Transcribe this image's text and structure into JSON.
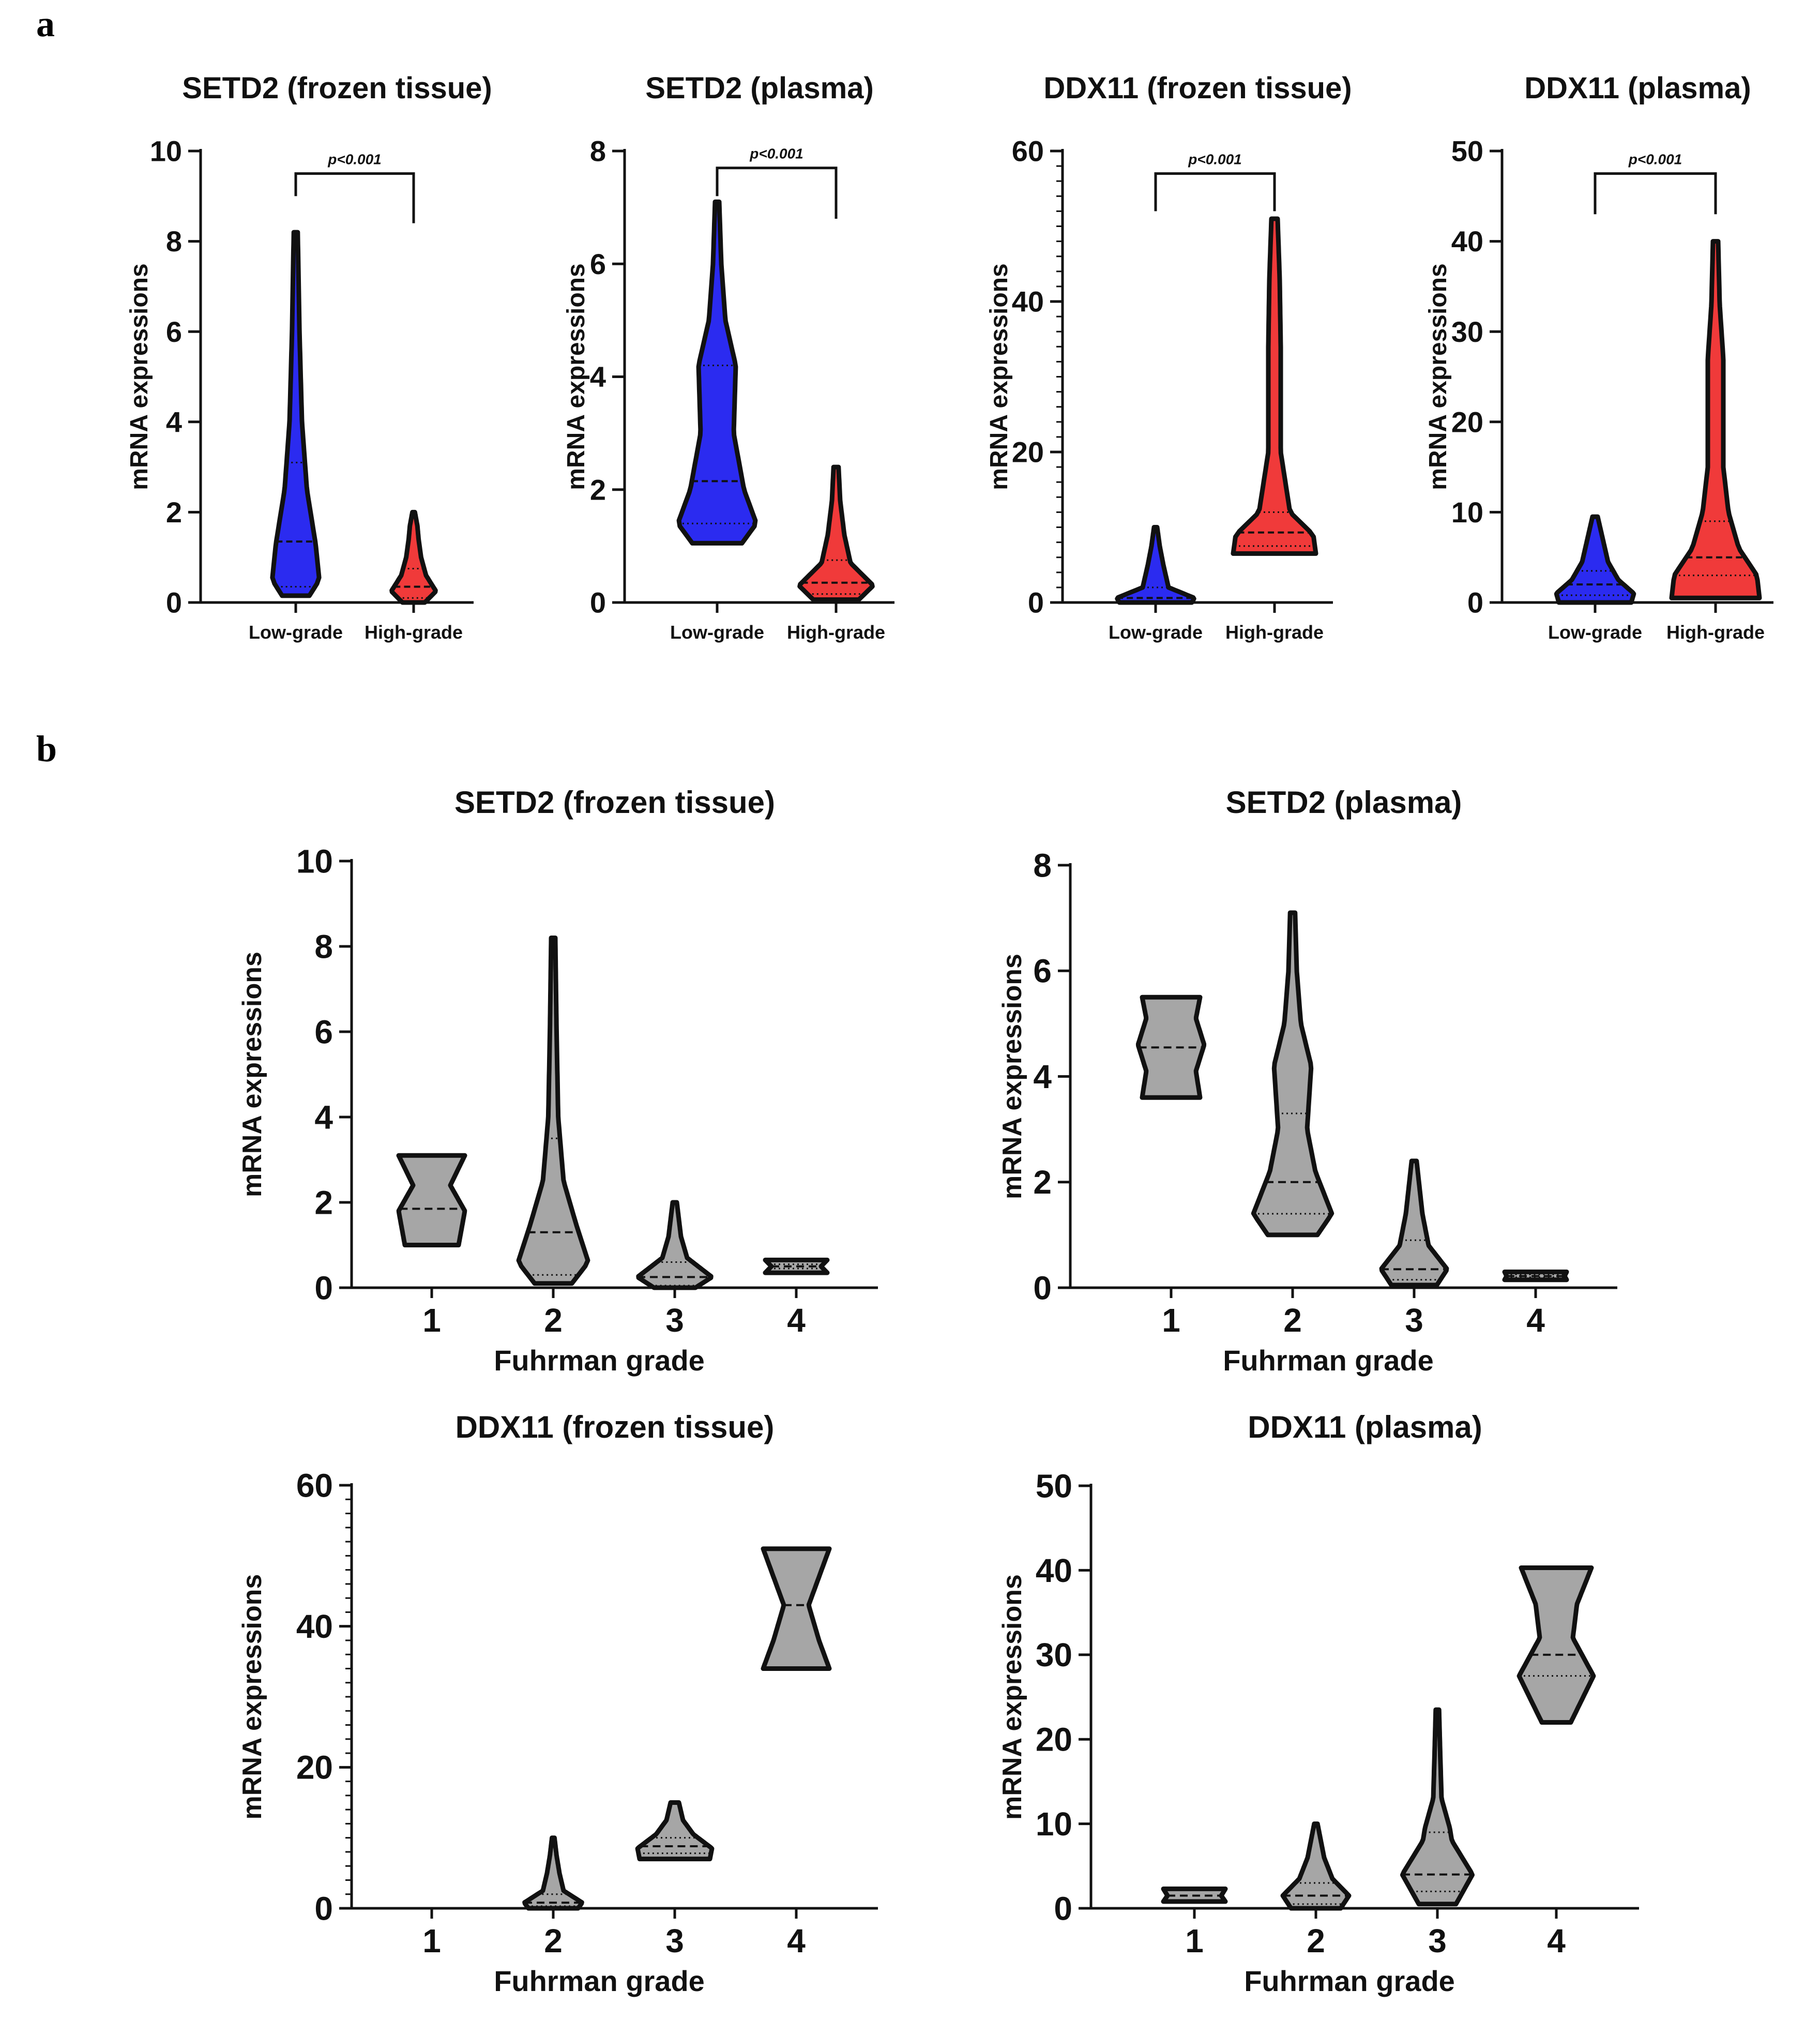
{
  "figure": {
    "panel_labels": [
      "a",
      "b"
    ],
    "colors": {
      "low_grade": "#2b2bf0",
      "high_grade": "#f03a3a",
      "grade": "#a6a6a6",
      "axis": "#111111"
    }
  },
  "chart_data": [
    {
      "id": "a1",
      "type": "violin",
      "title": "SETD2 (frozen tissue)",
      "xlabel": "",
      "ylabel": "mRNA expressions",
      "ylim": [
        0,
        10
      ],
      "yticks": [
        0,
        2,
        4,
        6,
        8,
        10
      ],
      "minor_ticks": false,
      "categories": [
        "Low-grade",
        "High-grade"
      ],
      "annotation": {
        "text": "p<0.001",
        "from": 0,
        "to": 1,
        "y": 9.5,
        "drop_left": 9.0,
        "drop_right": 8.4
      },
      "violins": [
        {
          "category": "Low-grade",
          "color": "#2b2bf0",
          "min": 0.15,
          "max": 8.2,
          "median": 1.35,
          "q1": 0.35,
          "q3": 3.1,
          "profile": [
            [
              0.15,
              0.55
            ],
            [
              0.5,
              0.95
            ],
            [
              1.3,
              0.8
            ],
            [
              2.5,
              0.45
            ],
            [
              4.0,
              0.25
            ],
            [
              6.0,
              0.15
            ],
            [
              8.2,
              0.08
            ]
          ]
        },
        {
          "category": "High-grade",
          "color": "#f03a3a",
          "min": 0.0,
          "max": 2.0,
          "median": 0.35,
          "q1": 0.1,
          "q3": 0.75,
          "profile": [
            [
              0.0,
              0.45
            ],
            [
              0.25,
              0.9
            ],
            [
              0.6,
              0.5
            ],
            [
              1.0,
              0.3
            ],
            [
              1.4,
              0.2
            ],
            [
              1.7,
              0.15
            ],
            [
              2.0,
              0.05
            ]
          ]
        }
      ]
    },
    {
      "id": "a2",
      "type": "violin",
      "title": "SETD2 (plasma)",
      "xlabel": "",
      "ylabel": "mRNA expressions",
      "ylim": [
        0,
        8
      ],
      "yticks": [
        0,
        2,
        4,
        6,
        8
      ],
      "minor_ticks": false,
      "categories": [
        "Low-grade",
        "High-grade"
      ],
      "annotation": {
        "text": "p<0.001",
        "from": 0,
        "to": 1,
        "y": 7.7,
        "drop_left": 7.2,
        "drop_right": 6.8
      },
      "violins": [
        {
          "category": "Low-grade",
          "color": "#2b2bf0",
          "min": 1.05,
          "max": 7.1,
          "median": 2.15,
          "q1": 1.4,
          "q3": 4.2,
          "profile": [
            [
              1.05,
              0.6
            ],
            [
              1.4,
              0.95
            ],
            [
              2.0,
              0.65
            ],
            [
              3.0,
              0.4
            ],
            [
              4.2,
              0.45
            ],
            [
              5.0,
              0.2
            ],
            [
              6.0,
              0.1
            ],
            [
              7.1,
              0.05
            ]
          ]
        },
        {
          "category": "High-grade",
          "color": "#f03a3a",
          "min": 0.05,
          "max": 2.4,
          "median": 0.35,
          "q1": 0.15,
          "q3": 0.75,
          "profile": [
            [
              0.05,
              0.55
            ],
            [
              0.3,
              0.9
            ],
            [
              0.7,
              0.35
            ],
            [
              1.2,
              0.2
            ],
            [
              1.8,
              0.1
            ],
            [
              2.4,
              0.06
            ]
          ]
        }
      ]
    },
    {
      "id": "a3",
      "type": "violin",
      "title": "DDX11 (frozen tissue)",
      "xlabel": "",
      "ylabel": "mRNA expressions",
      "ylim": [
        0,
        60
      ],
      "yticks": [
        0,
        20,
        40,
        60
      ],
      "minor_ticks": true,
      "categories": [
        "Low-grade",
        "High-grade"
      ],
      "annotation": {
        "text": "p<0.001",
        "from": 0,
        "to": 1,
        "y": 57,
        "drop_left": 52,
        "drop_right": 52
      },
      "violins": [
        {
          "category": "Low-grade",
          "color": "#2b2bf0",
          "min": 0.0,
          "max": 10.0,
          "median": 0.6,
          "q1": 0.2,
          "q3": 2.0,
          "profile": [
            [
              0.0,
              0.7
            ],
            [
              0.6,
              0.75
            ],
            [
              2.0,
              0.25
            ],
            [
              5.0,
              0.15
            ],
            [
              7.5,
              0.08
            ],
            [
              10.0,
              0.03
            ]
          ]
        },
        {
          "category": "High-grade",
          "color": "#f03a3a",
          "min": 6.5,
          "max": 51.0,
          "median": 9.3,
          "q1": 7.5,
          "q3": 12.0,
          "profile": [
            [
              6.5,
              0.8
            ],
            [
              9.0,
              0.75
            ],
            [
              12.0,
              0.3
            ],
            [
              20.0,
              0.12
            ],
            [
              34.0,
              0.12
            ],
            [
              43.0,
              0.1
            ],
            [
              51.0,
              0.06
            ]
          ]
        }
      ]
    },
    {
      "id": "a4",
      "type": "violin",
      "title": "DDX11 (plasma)",
      "xlabel": "",
      "ylabel": "mRNA expressions",
      "ylim": [
        0,
        50
      ],
      "yticks": [
        0,
        10,
        20,
        30,
        40,
        50
      ],
      "minor_ticks": false,
      "categories": [
        "Low-grade",
        "High-grade"
      ],
      "annotation": {
        "text": "p<0.001",
        "from": 0,
        "to": 1,
        "y": 47.5,
        "drop_left": 43.0,
        "drop_right": 43.0
      },
      "violins": [
        {
          "category": "Low-grade",
          "color": "#2b2bf0",
          "min": 0.0,
          "max": 9.5,
          "median": 2.0,
          "q1": 0.8,
          "q3": 3.5,
          "profile": [
            [
              0.0,
              0.7
            ],
            [
              1.0,
              0.75
            ],
            [
              2.5,
              0.45
            ],
            [
              4.5,
              0.25
            ],
            [
              7.0,
              0.15
            ],
            [
              9.5,
              0.05
            ]
          ]
        },
        {
          "category": "High-grade",
          "color": "#f03a3a",
          "min": 0.5,
          "max": 40.0,
          "median": 5.0,
          "q1": 3.0,
          "q3": 9.0,
          "profile": [
            [
              0.5,
              0.85
            ],
            [
              3.0,
              0.8
            ],
            [
              6.0,
              0.45
            ],
            [
              10.0,
              0.25
            ],
            [
              15.0,
              0.15
            ],
            [
              27.0,
              0.15
            ],
            [
              33.0,
              0.08
            ],
            [
              40.0,
              0.05
            ]
          ]
        }
      ]
    },
    {
      "id": "b1",
      "type": "violin",
      "title": "SETD2 (frozen tissue)",
      "xlabel": "Fuhrman grade",
      "ylabel": "mRNA expressions",
      "ylim": [
        0,
        10
      ],
      "yticks": [
        0,
        2,
        4,
        6,
        8,
        10
      ],
      "minor_ticks": false,
      "categories": [
        "1",
        "2",
        "3",
        "4"
      ],
      "violins": [
        {
          "category": "1",
          "color": "#a6a6a6",
          "min": 1.0,
          "max": 3.1,
          "median": 1.85,
          "q1": 1.85,
          "q3": 1.85,
          "profile": [
            [
              1.0,
              0.65
            ],
            [
              1.8,
              0.8
            ],
            [
              2.4,
              0.45
            ],
            [
              3.1,
              0.8
            ]
          ]
        },
        {
          "category": "2",
          "color": "#a6a6a6",
          "min": 0.1,
          "max": 8.2,
          "median": 1.3,
          "q1": 0.3,
          "q3": 3.5,
          "profile": [
            [
              0.1,
              0.45
            ],
            [
              0.6,
              0.85
            ],
            [
              1.5,
              0.55
            ],
            [
              2.5,
              0.25
            ],
            [
              4.0,
              0.12
            ],
            [
              6.0,
              0.08
            ],
            [
              8.2,
              0.05
            ]
          ]
        },
        {
          "category": "3",
          "color": "#a6a6a6",
          "min": 0.0,
          "max": 2.0,
          "median": 0.25,
          "q1": 0.05,
          "q3": 0.6,
          "profile": [
            [
              0.0,
              0.5
            ],
            [
              0.25,
              0.9
            ],
            [
              0.7,
              0.3
            ],
            [
              1.2,
              0.15
            ],
            [
              1.6,
              0.1
            ],
            [
              2.0,
              0.05
            ]
          ]
        },
        {
          "category": "4",
          "color": "#a6a6a6",
          "min": 0.35,
          "max": 0.65,
          "median": 0.5,
          "q1": 0.45,
          "q3": 0.55,
          "profile": [
            [
              0.35,
              0.75
            ],
            [
              0.5,
              0.6
            ],
            [
              0.65,
              0.75
            ]
          ]
        }
      ]
    },
    {
      "id": "b2",
      "type": "violin",
      "title": "SETD2 (plasma)",
      "xlabel": "Fuhrman grade",
      "ylabel": "mRNA expressions",
      "ylim": [
        0,
        8
      ],
      "yticks": [
        0,
        2,
        4,
        6,
        8
      ],
      "minor_ticks": false,
      "categories": [
        "1",
        "2",
        "3",
        "4"
      ],
      "violins": [
        {
          "category": "1",
          "color": "#a6a6a6",
          "min": 3.6,
          "max": 5.5,
          "median": 4.55,
          "q1": 4.55,
          "q3": 4.55,
          "profile": [
            [
              3.6,
              0.7
            ],
            [
              4.1,
              0.6
            ],
            [
              4.6,
              0.8
            ],
            [
              5.1,
              0.6
            ],
            [
              5.5,
              0.7
            ]
          ]
        },
        {
          "category": "2",
          "color": "#a6a6a6",
          "min": 1.0,
          "max": 7.1,
          "median": 2.0,
          "q1": 1.4,
          "q3": 3.3,
          "profile": [
            [
              1.0,
              0.6
            ],
            [
              1.4,
              0.95
            ],
            [
              2.2,
              0.55
            ],
            [
              3.0,
              0.35
            ],
            [
              4.2,
              0.45
            ],
            [
              5.0,
              0.2
            ],
            [
              6.0,
              0.1
            ],
            [
              7.1,
              0.06
            ]
          ]
        },
        {
          "category": "3",
          "color": "#a6a6a6",
          "min": 0.05,
          "max": 2.4,
          "median": 0.35,
          "q1": 0.15,
          "q3": 0.9,
          "profile": [
            [
              0.05,
              0.55
            ],
            [
              0.35,
              0.8
            ],
            [
              0.8,
              0.35
            ],
            [
              1.4,
              0.2
            ],
            [
              2.4,
              0.06
            ]
          ]
        },
        {
          "category": "4",
          "color": "#a6a6a6",
          "min": 0.15,
          "max": 0.3,
          "median": 0.22,
          "q1": 0.2,
          "q3": 0.25,
          "profile": [
            [
              0.15,
              0.75
            ],
            [
              0.22,
              0.7
            ],
            [
              0.3,
              0.75
            ]
          ]
        }
      ]
    },
    {
      "id": "b3",
      "type": "violin",
      "title": "DDX11 (frozen tissue)",
      "xlabel": "Fuhrman grade",
      "ylabel": "mRNA expressions",
      "ylim": [
        0,
        60
      ],
      "yticks": [
        0,
        20,
        40,
        60
      ],
      "minor_ticks": true,
      "categories": [
        "1",
        "2",
        "3",
        "4"
      ],
      "violins": [
        {
          "category": "2",
          "color": "#a6a6a6",
          "min": 0.0,
          "max": 10.0,
          "median": 0.8,
          "q1": 0.3,
          "q3": 2.0,
          "profile": [
            [
              0.0,
              0.6
            ],
            [
              0.8,
              0.7
            ],
            [
              2.5,
              0.25
            ],
            [
              5.0,
              0.15
            ],
            [
              7.5,
              0.08
            ],
            [
              10.0,
              0.03
            ]
          ]
        },
        {
          "category": "3",
          "color": "#a6a6a6",
          "min": 7.0,
          "max": 15.0,
          "median": 8.8,
          "q1": 7.8,
          "q3": 10.0,
          "profile": [
            [
              7.0,
              0.85
            ],
            [
              8.5,
              0.9
            ],
            [
              10.5,
              0.45
            ],
            [
              12.5,
              0.2
            ],
            [
              15.0,
              0.1
            ]
          ]
        },
        {
          "category": "4",
          "color": "#a6a6a6",
          "min": 34.0,
          "max": 51.0,
          "median": 43.0,
          "q1": 43.0,
          "q3": 43.0,
          "profile": [
            [
              34.0,
              0.8
            ],
            [
              38.0,
              0.55
            ],
            [
              43.0,
              0.3
            ],
            [
              47.0,
              0.55
            ],
            [
              51.0,
              0.8
            ]
          ]
        }
      ]
    },
    {
      "id": "b4",
      "type": "violin",
      "title": "DDX11 (plasma)",
      "xlabel": "Fuhrman grade",
      "ylabel": "mRNA expressions",
      "ylim": [
        0,
        50
      ],
      "yticks": [
        0,
        10,
        20,
        30,
        40,
        50
      ],
      "minor_ticks": false,
      "categories": [
        "1",
        "2",
        "3",
        "4"
      ],
      "violins": [
        {
          "category": "1",
          "color": "#a6a6a6",
          "min": 0.8,
          "max": 2.3,
          "median": 1.5,
          "q1": 1.5,
          "q3": 1.5,
          "profile": [
            [
              0.8,
              0.75
            ],
            [
              1.5,
              0.65
            ],
            [
              2.3,
              0.75
            ]
          ]
        },
        {
          "category": "2",
          "color": "#a6a6a6",
          "min": 0.0,
          "max": 10.0,
          "median": 1.5,
          "q1": 0.5,
          "q3": 3.0,
          "profile": [
            [
              0.0,
              0.6
            ],
            [
              1.5,
              0.8
            ],
            [
              3.5,
              0.4
            ],
            [
              6.0,
              0.2
            ],
            [
              8.5,
              0.1
            ],
            [
              10.0,
              0.04
            ]
          ]
        },
        {
          "category": "3",
          "color": "#a6a6a6",
          "min": 0.5,
          "max": 23.5,
          "median": 4.0,
          "q1": 2.0,
          "q3": 9.0,
          "profile": [
            [
              0.5,
              0.45
            ],
            [
              4.0,
              0.85
            ],
            [
              8.0,
              0.35
            ],
            [
              9.5,
              0.3
            ],
            [
              13.0,
              0.1
            ],
            [
              18.0,
              0.07
            ],
            [
              23.5,
              0.04
            ]
          ]
        },
        {
          "category": "4",
          "color": "#a6a6a6",
          "min": 22.0,
          "max": 40.3,
          "median": 30.0,
          "q1": 27.5,
          "q3": 30.0,
          "profile": [
            [
              22.0,
              0.35
            ],
            [
              27.5,
              0.9
            ],
            [
              32.0,
              0.4
            ],
            [
              36.0,
              0.5
            ],
            [
              40.3,
              0.85
            ]
          ]
        }
      ]
    }
  ]
}
